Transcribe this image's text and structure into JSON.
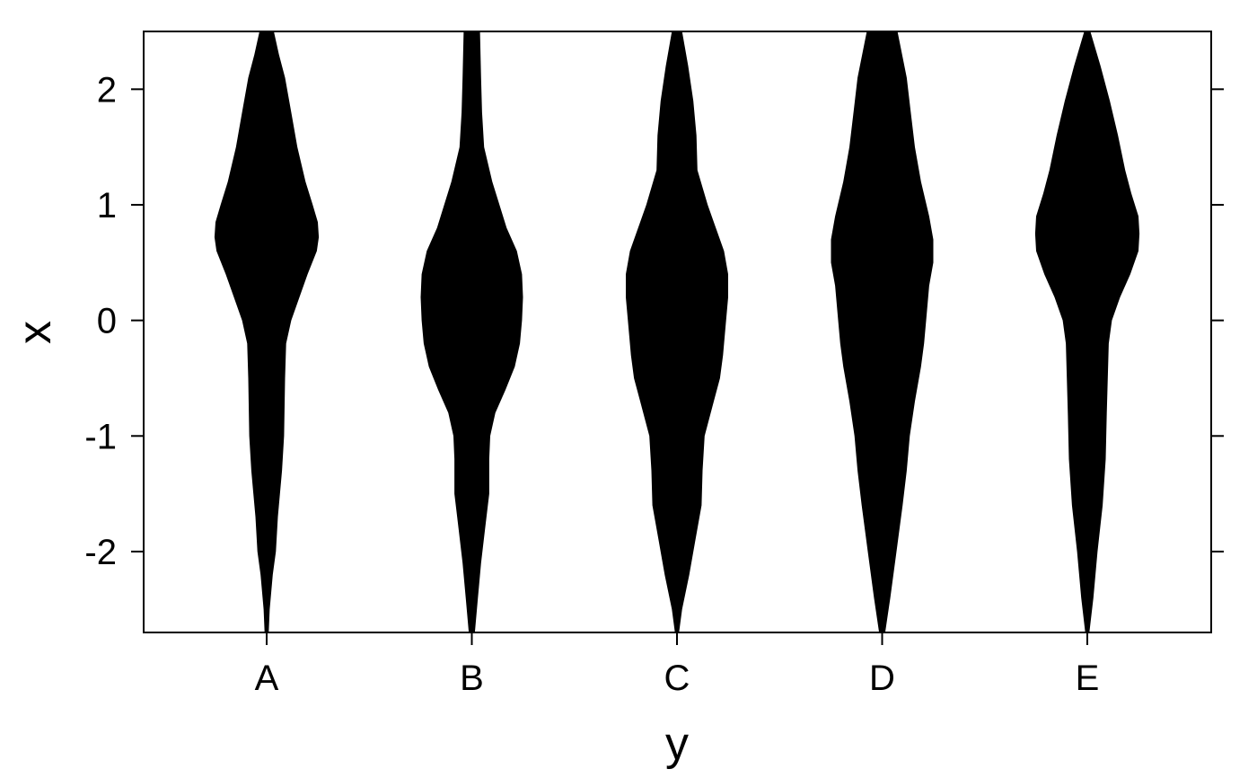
{
  "chart_data": {
    "type": "violin",
    "xlabel": "y",
    "ylabel": "x",
    "categories": [
      "A",
      "B",
      "C",
      "D",
      "E"
    ],
    "ylim": [
      -2.7,
      2.5
    ],
    "y_ticks": [
      -2,
      -1,
      0,
      1,
      2
    ],
    "y_tick_labels": [
      "-2",
      "-1",
      "0",
      "1",
      "2"
    ],
    "fill_color": "#000000",
    "grid": false,
    "series": [
      {
        "category": "A",
        "x": [
          -2.7,
          -2.5,
          -2.2,
          -2.0,
          -1.7,
          -1.5,
          -1.3,
          -1.0,
          -0.5,
          -0.2,
          0.0,
          0.2,
          0.4,
          0.6,
          0.72,
          0.85,
          1.0,
          1.2,
          1.5,
          1.8,
          2.1,
          2.3,
          2.5
        ],
        "half_width": [
          0.02,
          0.03,
          0.06,
          0.09,
          0.11,
          0.13,
          0.15,
          0.17,
          0.18,
          0.19,
          0.24,
          0.32,
          0.4,
          0.49,
          0.51,
          0.5,
          0.45,
          0.38,
          0.3,
          0.24,
          0.18,
          0.12,
          0.07
        ]
      },
      {
        "category": "B",
        "x": [
          -2.7,
          -2.4,
          -2.1,
          -1.8,
          -1.5,
          -1.2,
          -1.0,
          -0.8,
          -0.6,
          -0.4,
          -0.2,
          0.0,
          0.2,
          0.4,
          0.6,
          0.8,
          1.0,
          1.2,
          1.5,
          1.8,
          2.1,
          2.5
        ],
        "half_width": [
          0.03,
          0.06,
          0.09,
          0.13,
          0.17,
          0.17,
          0.18,
          0.23,
          0.33,
          0.42,
          0.47,
          0.49,
          0.5,
          0.49,
          0.44,
          0.34,
          0.27,
          0.2,
          0.12,
          0.1,
          0.09,
          0.08
        ]
      },
      {
        "category": "C",
        "x": [
          -2.7,
          -2.5,
          -2.2,
          -1.9,
          -1.6,
          -1.3,
          -1.0,
          -0.7,
          -0.5,
          -0.3,
          0.0,
          0.2,
          0.4,
          0.6,
          0.8,
          1.0,
          1.3,
          1.6,
          1.9,
          2.2,
          2.5
        ],
        "half_width": [
          0.02,
          0.05,
          0.12,
          0.18,
          0.24,
          0.25,
          0.27,
          0.36,
          0.42,
          0.45,
          0.48,
          0.5,
          0.5,
          0.46,
          0.38,
          0.3,
          0.2,
          0.19,
          0.16,
          0.11,
          0.05
        ]
      },
      {
        "category": "D",
        "x": [
          -2.7,
          -2.4,
          -2.0,
          -1.6,
          -1.3,
          -1.0,
          -0.7,
          -0.4,
          -0.2,
          0.0,
          0.3,
          0.5,
          0.7,
          0.9,
          1.2,
          1.5,
          1.8,
          2.1,
          2.5
        ],
        "half_width": [
          0.03,
          0.08,
          0.14,
          0.2,
          0.24,
          0.27,
          0.32,
          0.38,
          0.41,
          0.43,
          0.46,
          0.5,
          0.5,
          0.46,
          0.38,
          0.32,
          0.28,
          0.24,
          0.15
        ]
      },
      {
        "category": "E",
        "x": [
          -2.7,
          -2.4,
          -2.0,
          -1.6,
          -1.2,
          -0.8,
          -0.5,
          -0.2,
          0.0,
          0.2,
          0.4,
          0.6,
          0.75,
          0.9,
          1.1,
          1.3,
          1.6,
          1.9,
          2.2,
          2.5
        ],
        "half_width": [
          0.02,
          0.06,
          0.1,
          0.15,
          0.18,
          0.19,
          0.2,
          0.21,
          0.24,
          0.32,
          0.42,
          0.5,
          0.51,
          0.5,
          0.43,
          0.37,
          0.3,
          0.22,
          0.13,
          0.03
        ]
      }
    ]
  }
}
